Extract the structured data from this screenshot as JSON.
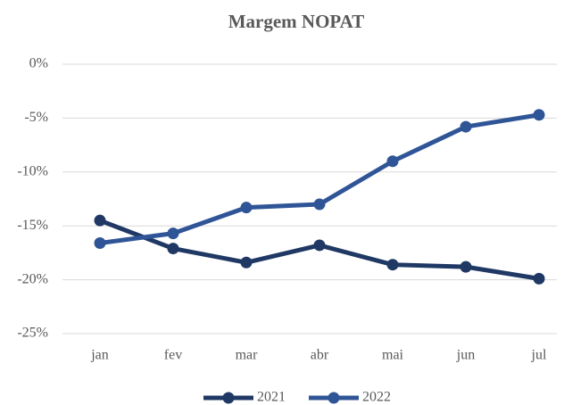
{
  "chart_data": {
    "type": "line",
    "title": "Margem NOPAT",
    "categories": [
      "jan",
      "fev",
      "mar",
      "abr",
      "mai",
      "jun",
      "jul"
    ],
    "series": [
      {
        "name": "2021",
        "color": "#1f3864",
        "values": [
          -14.5,
          -17.1,
          -18.4,
          -16.8,
          -18.6,
          -18.8,
          -19.9
        ]
      },
      {
        "name": "2022",
        "color": "#2f5597",
        "values": [
          -16.6,
          -15.7,
          -13.3,
          -13.0,
          -9.0,
          -5.8,
          -4.7
        ]
      }
    ],
    "ylim": [
      -25,
      0
    ],
    "yticks": [
      {
        "value": 0,
        "label": "0%"
      },
      {
        "value": -5,
        "label": "-5%"
      },
      {
        "value": -10,
        "label": "-10%"
      },
      {
        "value": -15,
        "label": "-15%"
      },
      {
        "value": -20,
        "label": "-20%"
      },
      {
        "value": -25,
        "label": "-25%"
      }
    ],
    "grid": true,
    "legend": "bottom"
  }
}
